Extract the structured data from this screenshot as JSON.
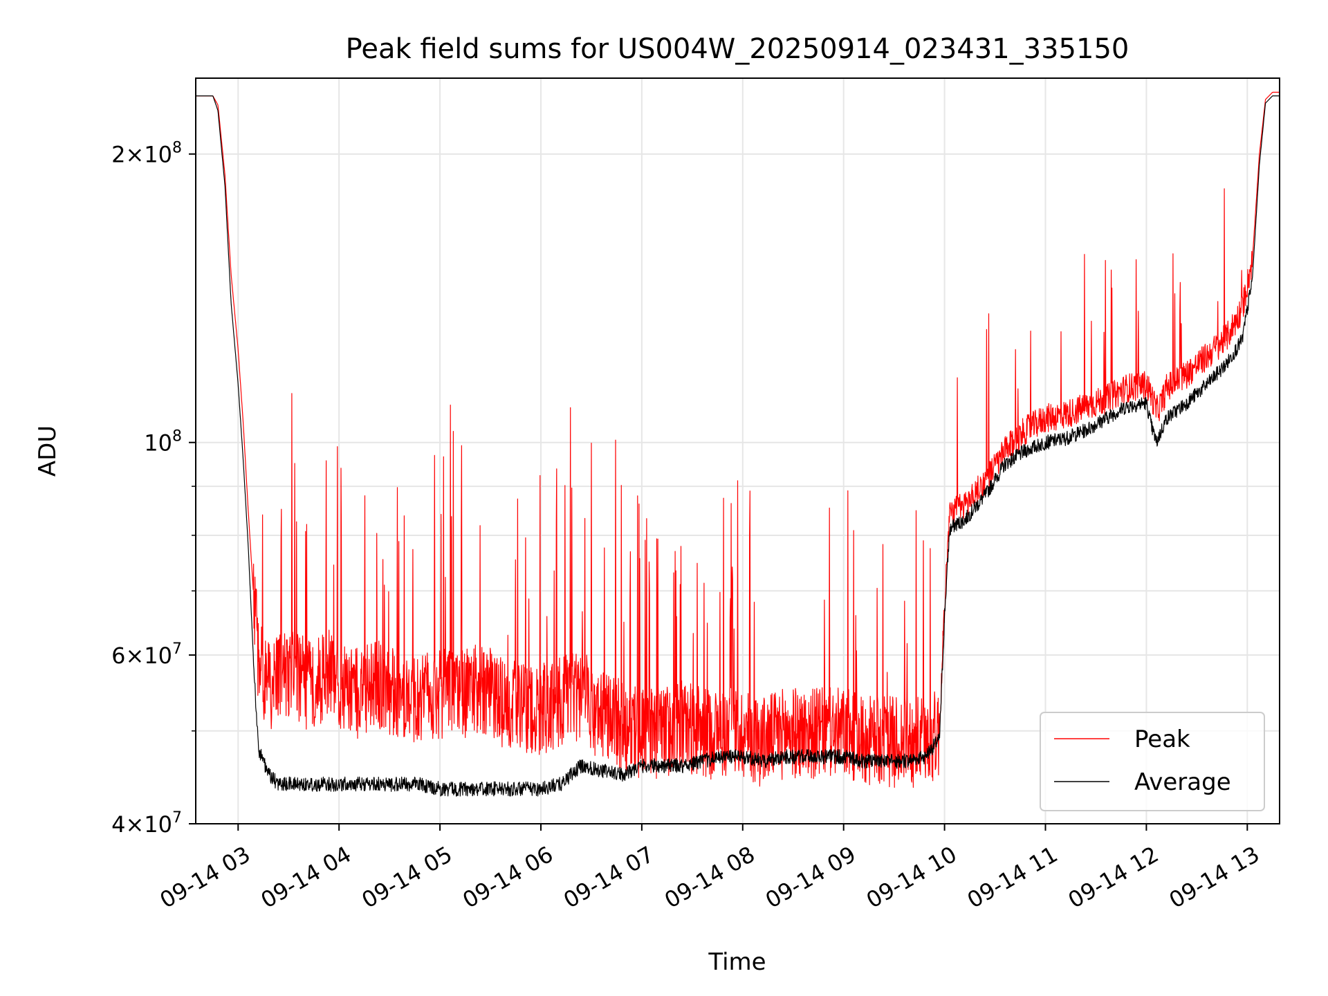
{
  "chart_data": {
    "type": "line",
    "title": "Peak field sums for US004W_20250914_023431_335150",
    "xlabel": "Time",
    "ylabel": "ADU",
    "yscale": "log",
    "ylim": [
      40000000,
      240000000
    ],
    "xlim_hours": [
      2.58,
      13.32
    ],
    "x_ticks": [
      {
        "hour": 3,
        "label": "09-14 03"
      },
      {
        "hour": 4,
        "label": "09-14 04"
      },
      {
        "hour": 5,
        "label": "09-14 05"
      },
      {
        "hour": 6,
        "label": "09-14 06"
      },
      {
        "hour": 7,
        "label": "09-14 07"
      },
      {
        "hour": 8,
        "label": "09-14 08"
      },
      {
        "hour": 9,
        "label": "09-14 09"
      },
      {
        "hour": 10,
        "label": "09-14 10"
      },
      {
        "hour": 11,
        "label": "09-14 11"
      },
      {
        "hour": 12,
        "label": "09-14 12"
      },
      {
        "hour": 13,
        "label": "09-14 13"
      }
    ],
    "y_ticks": [
      {
        "value": 40000000,
        "base": "4",
        "exp": "7"
      },
      {
        "value": 60000000,
        "base": "6",
        "exp": "7"
      },
      {
        "value": 100000000,
        "base": "",
        "exp": "8"
      },
      {
        "value": 200000000,
        "base": "2",
        "exp": "8"
      }
    ],
    "y_minor_ticks": [
      50000000,
      70000000,
      80000000,
      90000000
    ],
    "grid": true,
    "legend_position": "lower right",
    "series": [
      {
        "name": "Peak",
        "color": "#ff0000",
        "x": [
          2.58,
          2.75,
          2.8,
          2.87,
          2.93,
          3.0,
          3.05,
          3.1,
          3.15,
          3.2,
          3.3,
          3.4,
          3.5,
          3.6,
          3.7,
          3.8,
          3.9,
          4.0,
          4.2,
          4.4,
          4.6,
          4.8,
          5.0,
          5.2,
          5.4,
          5.6,
          5.8,
          6.0,
          6.2,
          6.4,
          6.6,
          6.8,
          7.0,
          7.2,
          7.4,
          7.6,
          7.8,
          8.0,
          8.2,
          8.4,
          8.6,
          8.8,
          9.0,
          9.2,
          9.4,
          9.6,
          9.8,
          9.95,
          10.0,
          10.05,
          10.1,
          10.2,
          10.4,
          10.6,
          10.8,
          11.0,
          11.2,
          11.4,
          11.6,
          11.8,
          12.0,
          12.05,
          12.1,
          12.15,
          12.2,
          12.4,
          12.6,
          12.8,
          12.95,
          13.05,
          13.12,
          13.18,
          13.25,
          13.32
        ],
        "y": [
          230000000,
          230000000,
          225000000,
          190000000,
          150000000,
          125000000,
          105000000,
          85000000,
          70000000,
          60000000,
          56000000,
          57000000,
          58000000,
          57000000,
          56000000,
          57000000,
          58000000,
          56000000,
          55000000,
          56000000,
          55000000,
          54000000,
          55000000,
          55000000,
          56000000,
          54000000,
          53000000,
          53000000,
          54000000,
          55000000,
          52000000,
          51000000,
          50000000,
          50000000,
          51000000,
          50000000,
          50000000,
          50000000,
          49000000,
          50000000,
          50000000,
          50000000,
          50000000,
          49000000,
          49000000,
          49000000,
          49000000,
          50000000,
          68000000,
          84000000,
          85000000,
          86000000,
          91000000,
          98000000,
          103000000,
          106000000,
          107000000,
          109000000,
          111000000,
          114000000,
          115000000,
          112000000,
          108000000,
          110000000,
          114000000,
          118000000,
          123000000,
          129000000,
          138000000,
          155000000,
          200000000,
          228000000,
          232000000,
          232000000
        ]
      },
      {
        "name": "Average",
        "color": "#000000",
        "x": [
          2.58,
          2.75,
          2.8,
          2.87,
          2.93,
          3.0,
          3.05,
          3.1,
          3.15,
          3.2,
          3.3,
          3.4,
          3.5,
          3.6,
          3.7,
          3.8,
          3.9,
          4.0,
          4.2,
          4.4,
          4.6,
          4.8,
          5.0,
          5.2,
          5.4,
          5.6,
          5.8,
          6.0,
          6.2,
          6.4,
          6.6,
          6.8,
          7.0,
          7.2,
          7.4,
          7.6,
          7.8,
          8.0,
          8.2,
          8.4,
          8.6,
          8.8,
          9.0,
          9.2,
          9.4,
          9.6,
          9.8,
          9.95,
          10.0,
          10.05,
          10.1,
          10.2,
          10.4,
          10.6,
          10.8,
          11.0,
          11.2,
          11.4,
          11.6,
          11.8,
          12.0,
          12.05,
          12.1,
          12.15,
          12.2,
          12.4,
          12.6,
          12.8,
          12.95,
          13.05,
          13.12,
          13.18,
          13.25,
          13.32
        ],
        "y": [
          230000000,
          230000000,
          222000000,
          185000000,
          140000000,
          115000000,
          96000000,
          78000000,
          60000000,
          48000000,
          45000000,
          44000000,
          44000000,
          44000000,
          44000000,
          44000000,
          44000000,
          44000000,
          44000000,
          44000000,
          44000000,
          44000000,
          43500000,
          43500000,
          43500000,
          43500000,
          43500000,
          43500000,
          44000000,
          46000000,
          45500000,
          45000000,
          46000000,
          46000000,
          46000000,
          46500000,
          47000000,
          47000000,
          46500000,
          47000000,
          47000000,
          47000000,
          47000000,
          46500000,
          46500000,
          46500000,
          47000000,
          49000000,
          66000000,
          81000000,
          82000000,
          83000000,
          88000000,
          95000000,
          98000000,
          100000000,
          101000000,
          103000000,
          106000000,
          109000000,
          110000000,
          104000000,
          100000000,
          103000000,
          106000000,
          110000000,
          115000000,
          121000000,
          128000000,
          148000000,
          195000000,
          226000000,
          230000000,
          230000000
        ]
      }
    ]
  }
}
